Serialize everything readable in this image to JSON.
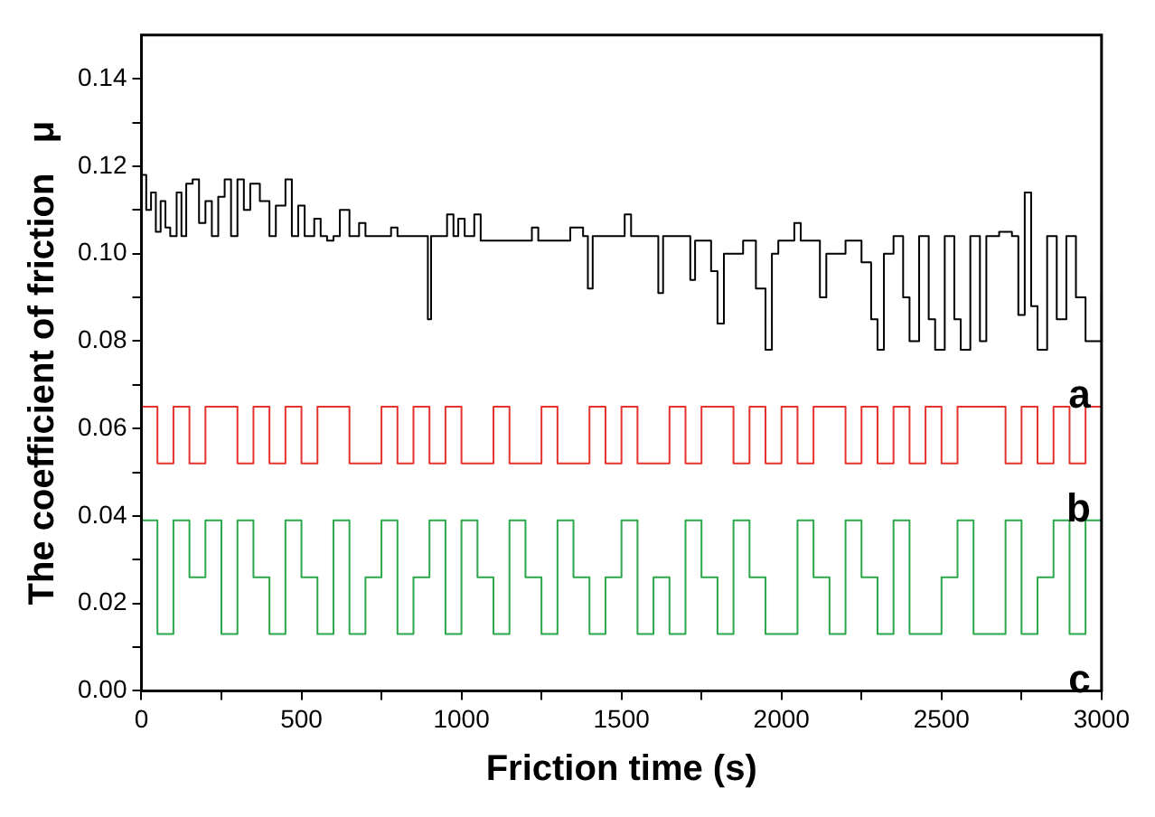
{
  "chart_data": {
    "type": "step",
    "xlabel": "Friction time (s)",
    "ylabel": "The coefficient of friction   μ",
    "xlim": [
      0,
      3000
    ],
    "ylim": [
      0,
      0.15
    ],
    "xticks": [
      0,
      {
        "value": 250,
        "label": null
      },
      500,
      {
        "value": 750,
        "label": null
      },
      1000,
      {
        "value": 1250,
        "label": null
      },
      1500,
      {
        "value": 1750,
        "label": null
      },
      2000,
      {
        "value": 2250,
        "label": null
      },
      2500,
      {
        "value": 2750,
        "label": null
      },
      3000
    ],
    "yticks": [
      {
        "value": 0,
        "label": "0.00"
      },
      {
        "value": 0.01,
        "label": null
      },
      0.02,
      {
        "value": 0.03,
        "label": null
      },
      0.04,
      {
        "value": 0.05,
        "label": null
      },
      0.06,
      {
        "value": 0.07,
        "label": null
      },
      0.08,
      {
        "value": 0.09,
        "label": null
      },
      {
        "value": 0.1,
        "label": "0.10"
      },
      {
        "value": 0.11,
        "label": null
      },
      0.12,
      {
        "value": 0.13,
        "label": null
      },
      0.14
    ],
    "grid": false,
    "legend": false,
    "marker": "none",
    "line_style": "solid",
    "series": [
      {
        "name": "a",
        "color": "#000000",
        "x": [
          0,
          15,
          30,
          45,
          60,
          75,
          90,
          110,
          125,
          140,
          160,
          180,
          200,
          220,
          240,
          260,
          280,
          300,
          320,
          340,
          370,
          400,
          420,
          450,
          470,
          490,
          510,
          540,
          560,
          580,
          600,
          620,
          650,
          680,
          700,
          750,
          780,
          800,
          880,
          895,
          905,
          940,
          955,
          975,
          990,
          1010,
          1040,
          1060,
          1200,
          1220,
          1240,
          1320,
          1340,
          1380,
          1395,
          1410,
          1500,
          1510,
          1530,
          1600,
          1615,
          1630,
          1700,
          1715,
          1730,
          1760,
          1780,
          1800,
          1820,
          1880,
          1900,
          1920,
          1950,
          1970,
          1990,
          2040,
          2060,
          2100,
          2120,
          2140,
          2200,
          2230,
          2250,
          2280,
          2300,
          2320,
          2350,
          2380,
          2400,
          2430,
          2460,
          2480,
          2510,
          2540,
          2560,
          2590,
          2620,
          2640,
          2680,
          2720,
          2740,
          2760,
          2780,
          2800,
          2830,
          2860,
          2890,
          2920,
          2950,
          2980,
          3000
        ],
        "values": [
          0.118,
          0.11,
          0.114,
          0.105,
          0.112,
          0.106,
          0.104,
          0.114,
          0.104,
          0.116,
          0.117,
          0.107,
          0.112,
          0.104,
          0.113,
          0.117,
          0.104,
          0.117,
          0.11,
          0.116,
          0.112,
          0.104,
          0.111,
          0.117,
          0.104,
          0.111,
          0.104,
          0.108,
          0.104,
          0.103,
          0.104,
          0.11,
          0.104,
          0.107,
          0.104,
          0.104,
          0.106,
          0.104,
          0.104,
          0.085,
          0.104,
          0.104,
          0.109,
          0.104,
          0.108,
          0.104,
          0.109,
          0.103,
          0.103,
          0.106,
          0.103,
          0.103,
          0.106,
          0.104,
          0.092,
          0.104,
          0.104,
          0.109,
          0.104,
          0.104,
          0.091,
          0.104,
          0.104,
          0.094,
          0.103,
          0.103,
          0.096,
          0.084,
          0.1,
          0.103,
          0.103,
          0.092,
          0.078,
          0.1,
          0.103,
          0.107,
          0.103,
          0.103,
          0.09,
          0.1,
          0.103,
          0.103,
          0.098,
          0.085,
          0.078,
          0.1,
          0.104,
          0.09,
          0.08,
          0.104,
          0.085,
          0.078,
          0.104,
          0.085,
          0.078,
          0.104,
          0.08,
          0.104,
          0.105,
          0.104,
          0.086,
          0.114,
          0.088,
          0.078,
          0.104,
          0.085,
          0.104,
          0.09,
          0.08,
          0.08,
          0.091
        ]
      },
      {
        "name": "b",
        "color": "#e5322d",
        "x": [
          0,
          50,
          100,
          150,
          200,
          250,
          300,
          350,
          400,
          450,
          500,
          550,
          600,
          650,
          700,
          750,
          800,
          850,
          900,
          950,
          1000,
          1050,
          1100,
          1150,
          1200,
          1250,
          1300,
          1350,
          1400,
          1450,
          1500,
          1550,
          1600,
          1650,
          1700,
          1750,
          1800,
          1850,
          1900,
          1950,
          2000,
          2050,
          2100,
          2150,
          2200,
          2250,
          2300,
          2350,
          2400,
          2450,
          2500,
          2550,
          2600,
          2650,
          2700,
          2750,
          2800,
          2850,
          2900,
          2950,
          3000
        ],
        "values": [
          0.065,
          0.052,
          0.065,
          0.052,
          0.065,
          0.065,
          0.052,
          0.065,
          0.052,
          0.065,
          0.052,
          0.065,
          0.065,
          0.052,
          0.052,
          0.065,
          0.052,
          0.065,
          0.052,
          0.065,
          0.052,
          0.052,
          0.065,
          0.052,
          0.052,
          0.065,
          0.052,
          0.052,
          0.065,
          0.052,
          0.065,
          0.052,
          0.052,
          0.065,
          0.052,
          0.065,
          0.065,
          0.052,
          0.065,
          0.052,
          0.065,
          0.052,
          0.065,
          0.065,
          0.052,
          0.065,
          0.052,
          0.065,
          0.052,
          0.065,
          0.052,
          0.065,
          0.065,
          0.065,
          0.052,
          0.065,
          0.052,
          0.065,
          0.052,
          0.065,
          0.065
        ]
      },
      {
        "name": "c",
        "color": "#2aa84a",
        "x": [
          0,
          50,
          100,
          150,
          200,
          250,
          300,
          350,
          400,
          450,
          500,
          550,
          600,
          650,
          700,
          750,
          800,
          850,
          900,
          950,
          1000,
          1050,
          1100,
          1150,
          1200,
          1250,
          1300,
          1350,
          1400,
          1450,
          1500,
          1550,
          1600,
          1650,
          1700,
          1750,
          1800,
          1850,
          1900,
          1950,
          2000,
          2050,
          2100,
          2150,
          2200,
          2250,
          2300,
          2350,
          2400,
          2450,
          2500,
          2550,
          2600,
          2650,
          2700,
          2750,
          2800,
          2850,
          2900,
          2950,
          3000
        ],
        "values": [
          0.039,
          0.013,
          0.039,
          0.026,
          0.039,
          0.013,
          0.039,
          0.026,
          0.013,
          0.039,
          0.026,
          0.013,
          0.039,
          0.013,
          0.026,
          0.039,
          0.013,
          0.026,
          0.039,
          0.013,
          0.039,
          0.026,
          0.013,
          0.039,
          0.026,
          0.013,
          0.039,
          0.026,
          0.013,
          0.026,
          0.039,
          0.013,
          0.026,
          0.013,
          0.039,
          0.026,
          0.013,
          0.039,
          0.026,
          0.013,
          0.013,
          0.039,
          0.026,
          0.013,
          0.039,
          0.026,
          0.013,
          0.039,
          0.013,
          0.013,
          0.026,
          0.039,
          0.013,
          0.013,
          0.039,
          0.013,
          0.026,
          0.039,
          0.013,
          0.039,
          0.013
        ]
      }
    ]
  }
}
